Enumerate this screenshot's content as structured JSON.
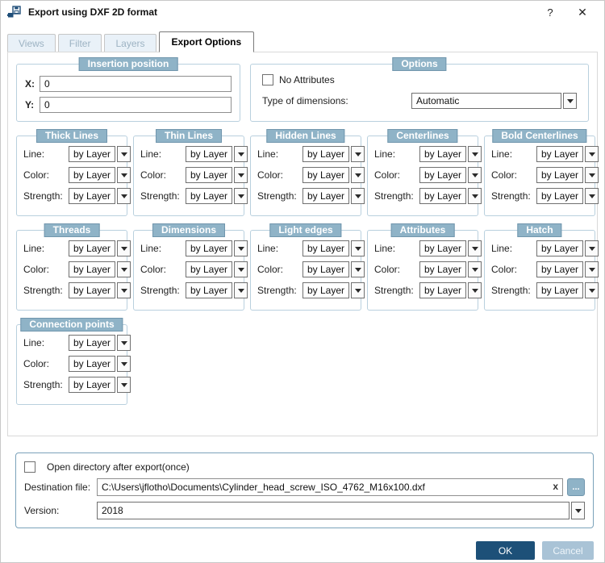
{
  "window": {
    "title": "Export using DXF 2D format",
    "help_glyph": "?",
    "close_glyph": "✕"
  },
  "tabs": [
    {
      "label": "Views",
      "active": false
    },
    {
      "label": "Filter",
      "active": false
    },
    {
      "label": "Layers",
      "active": false
    },
    {
      "label": "Export Options",
      "active": true
    }
  ],
  "insertion": {
    "title": "Insertion position",
    "x_label": "X:",
    "x_value": "0",
    "y_label": "Y:",
    "y_value": "0"
  },
  "options": {
    "title": "Options",
    "no_attributes_label": "No Attributes",
    "no_attributes_checked": false,
    "type_label": "Type of dimensions:",
    "type_value": "Automatic"
  },
  "line_groups": {
    "field_labels": {
      "line": "Line:",
      "color": "Color:",
      "strength": "Strength:"
    },
    "value": "by Layer",
    "rows": [
      [
        "Thick Lines",
        "Thin Lines",
        "Hidden Lines",
        "Centerlines",
        "Bold Centerlines"
      ],
      [
        "Threads",
        "Dimensions",
        "Light edges",
        "Attributes",
        "Hatch"
      ],
      [
        "Connection points"
      ]
    ]
  },
  "footer": {
    "open_dir_label": "Open directory after export(once)",
    "open_dir_checked": false,
    "dest_label": "Destination file:",
    "dest_value": "C:\\Users\\jflotho\\Documents\\Cylinder_head_screw_ISO_4762_M16x100.dxf",
    "clear_glyph": "x",
    "browse_glyph": "...",
    "version_label": "Version:",
    "version_value": "2018"
  },
  "actions": {
    "ok": "OK",
    "cancel": "Cancel"
  },
  "colors": {
    "group_badge_bg": "#8fb3c7",
    "group_badge_border": "#7196ad",
    "group_border": "#b9d0de",
    "footer_border": "#7ba2ba",
    "ok_button_bg": "#1d5078",
    "cancel_button_bg": "#a9c3d6",
    "inactive_tab_bg": "#e9f1f8",
    "inactive_tab_text": "#9db3c3"
  }
}
